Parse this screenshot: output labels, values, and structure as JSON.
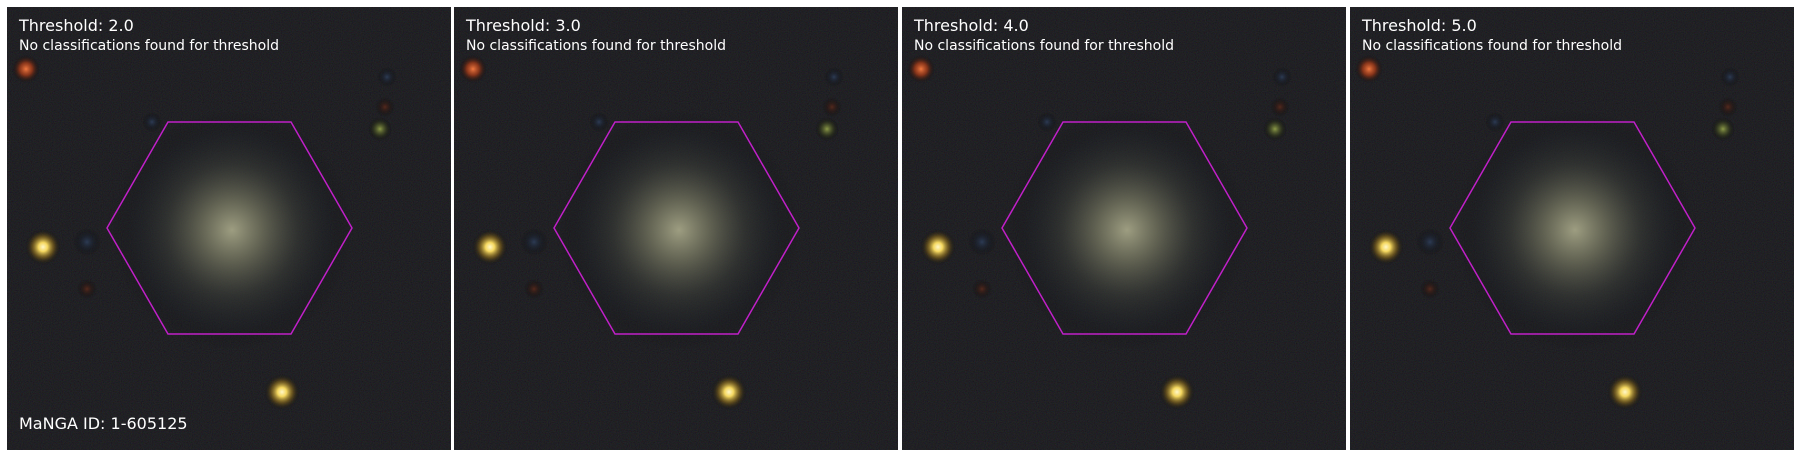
{
  "figure": {
    "manga_id_label": "MaNGA ID: 1-605125",
    "hexagon_color": "#c020c8",
    "panels": [
      {
        "title": "Threshold: 2.0",
        "subtitle": "No classifications found for threshold"
      },
      {
        "title": "Threshold: 3.0",
        "subtitle": "No classifications found for threshold"
      },
      {
        "title": "Threshold: 4.0",
        "subtitle": "No classifications found for threshold"
      },
      {
        "title": "Threshold: 5.0",
        "subtitle": "No classifications found for threshold"
      }
    ]
  }
}
